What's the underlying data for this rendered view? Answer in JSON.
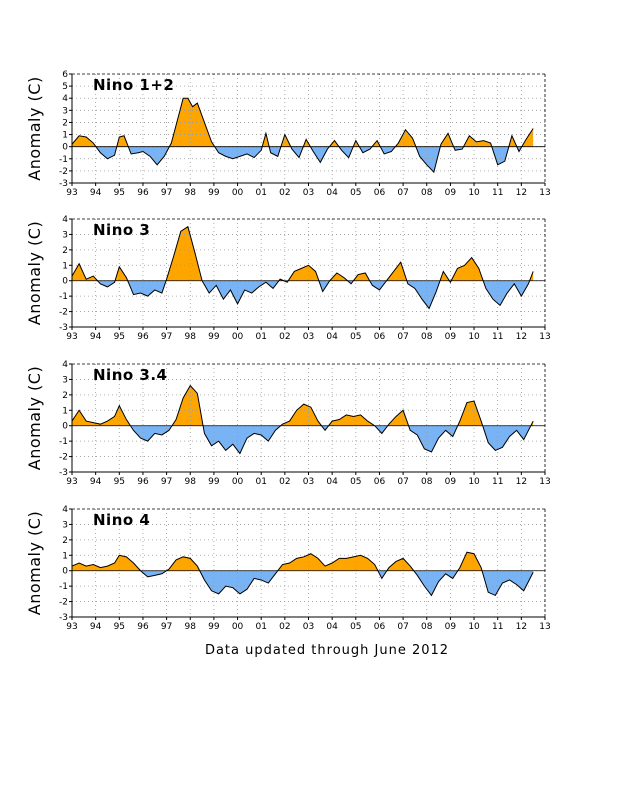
{
  "footer": "Data updated through June 2012",
  "colors": {
    "positive": "#ffa500",
    "negative": "#78b4f5",
    "line": "#000000",
    "grid": "#999999"
  },
  "chart_data": [
    {
      "type": "area",
      "title": "Nino 1+2",
      "ylabel": "Anomaly (C)",
      "xlim": [
        1993,
        2013
      ],
      "ylim": [
        -3,
        6
      ],
      "xticks": [
        1993,
        1994,
        1995,
        1996,
        1997,
        1998,
        1999,
        2000,
        2001,
        2002,
        2003,
        2004,
        2005,
        2006,
        2007,
        2008,
        2009,
        2010,
        2011,
        2012,
        2013
      ],
      "xtick_labels": [
        "93",
        "94",
        "95",
        "96",
        "97",
        "98",
        "99",
        "00",
        "01",
        "02",
        "03",
        "04",
        "05",
        "06",
        "07",
        "08",
        "09",
        "10",
        "11",
        "12",
        "13"
      ],
      "yticks": [
        -3,
        -2,
        -1,
        0,
        1,
        2,
        3,
        4,
        5,
        6
      ],
      "series": [
        {
          "x": [
            1993.0,
            1993.3,
            1993.6,
            1993.9,
            1994.2,
            1994.5,
            1994.8,
            1995.0,
            1995.2,
            1995.5,
            1995.8,
            1996.0,
            1996.3,
            1996.6,
            1996.9,
            1997.2,
            1997.5,
            1997.7,
            1997.9,
            1998.1,
            1998.3,
            1998.6,
            1998.9,
            1999.2,
            1999.5,
            1999.8,
            2000.1,
            2000.4,
            2000.7,
            2001.0,
            2001.2,
            2001.4,
            2001.7,
            2002.0,
            2002.3,
            2002.6,
            2002.9,
            2003.2,
            2003.5,
            2003.8,
            2004.1,
            2004.4,
            2004.7,
            2005.0,
            2005.3,
            2005.6,
            2005.9,
            2006.2,
            2006.5,
            2006.8,
            2007.1,
            2007.4,
            2007.7,
            2008.0,
            2008.3,
            2008.6,
            2008.9,
            2009.2,
            2009.5,
            2009.8,
            2010.1,
            2010.4,
            2010.7,
            2011.0,
            2011.3,
            2011.6,
            2011.9,
            2012.2,
            2012.5
          ],
          "y": [
            0.2,
            0.9,
            0.8,
            0.3,
            -0.5,
            -1.0,
            -0.7,
            0.8,
            0.9,
            -0.6,
            -0.5,
            -0.4,
            -0.8,
            -1.5,
            -0.8,
            0.3,
            2.5,
            4.0,
            4.0,
            3.3,
            3.6,
            2.0,
            0.4,
            -0.5,
            -0.8,
            -1.0,
            -0.8,
            -0.6,
            -0.9,
            -0.3,
            1.1,
            -0.5,
            -0.8,
            1.0,
            -0.2,
            -0.9,
            0.6,
            -0.4,
            -1.3,
            -0.2,
            0.5,
            -0.3,
            -0.9,
            0.5,
            -0.5,
            -0.2,
            0.5,
            -0.6,
            -0.4,
            0.3,
            1.4,
            0.7,
            -0.8,
            -1.5,
            -2.1,
            0.2,
            1.1,
            -0.3,
            -0.2,
            0.9,
            0.4,
            0.5,
            0.3,
            -1.5,
            -1.2,
            0.9,
            -0.4,
            0.6,
            1.5
          ]
        }
      ]
    },
    {
      "type": "area",
      "title": "Nino 3",
      "ylabel": "Anomaly (C)",
      "xlim": [
        1993,
        2013
      ],
      "ylim": [
        -3,
        4
      ],
      "xticks": [
        1993,
        1994,
        1995,
        1996,
        1997,
        1998,
        1999,
        2000,
        2001,
        2002,
        2003,
        2004,
        2005,
        2006,
        2007,
        2008,
        2009,
        2010,
        2011,
        2012,
        2013
      ],
      "xtick_labels": [
        "93",
        "94",
        "95",
        "96",
        "97",
        "98",
        "99",
        "00",
        "01",
        "02",
        "03",
        "04",
        "05",
        "06",
        "07",
        "08",
        "09",
        "10",
        "11",
        "12",
        "13"
      ],
      "yticks": [
        -3,
        -2,
        -1,
        0,
        1,
        2,
        3,
        4
      ],
      "series": [
        {
          "x": [
            1993.0,
            1993.3,
            1993.6,
            1993.9,
            1994.2,
            1994.5,
            1994.8,
            1995.0,
            1995.3,
            1995.6,
            1995.9,
            1996.2,
            1996.5,
            1996.8,
            1997.0,
            1997.3,
            1997.6,
            1997.9,
            1998.2,
            1998.5,
            1998.8,
            1999.1,
            1999.4,
            1999.7,
            2000.0,
            2000.3,
            2000.6,
            2000.9,
            2001.2,
            2001.5,
            2001.8,
            2002.1,
            2002.4,
            2002.7,
            2003.0,
            2003.3,
            2003.6,
            2003.9,
            2004.2,
            2004.5,
            2004.8,
            2005.1,
            2005.4,
            2005.7,
            2006.0,
            2006.3,
            2006.6,
            2006.9,
            2007.2,
            2007.5,
            2007.8,
            2008.1,
            2008.4,
            2008.7,
            2009.0,
            2009.3,
            2009.6,
            2009.9,
            2010.2,
            2010.5,
            2010.8,
            2011.1,
            2011.4,
            2011.7,
            2012.0,
            2012.3,
            2012.5
          ],
          "y": [
            0.3,
            1.1,
            0.1,
            0.3,
            -0.2,
            -0.4,
            -0.1,
            0.9,
            0.2,
            -0.9,
            -0.8,
            -1.0,
            -0.6,
            -0.8,
            0.1,
            1.6,
            3.2,
            3.5,
            1.8,
            0.0,
            -0.8,
            -0.3,
            -1.2,
            -0.6,
            -1.5,
            -0.6,
            -0.8,
            -0.4,
            -0.1,
            -0.5,
            0.1,
            -0.1,
            0.6,
            0.8,
            1.0,
            0.6,
            -0.7,
            0.0,
            0.5,
            0.2,
            -0.2,
            0.4,
            0.5,
            -0.3,
            -0.6,
            0.0,
            0.6,
            1.2,
            -0.2,
            -0.5,
            -1.2,
            -1.8,
            -0.7,
            0.6,
            -0.1,
            0.8,
            1.0,
            1.5,
            0.8,
            -0.5,
            -1.2,
            -1.6,
            -0.8,
            -0.2,
            -1.0,
            -0.2,
            0.6
          ]
        }
      ]
    },
    {
      "type": "area",
      "title": "Nino 3.4",
      "ylabel": "Anomaly (C)",
      "xlim": [
        1993,
        2013
      ],
      "ylim": [
        -3,
        4
      ],
      "xticks": [
        1993,
        1994,
        1995,
        1996,
        1997,
        1998,
        1999,
        2000,
        2001,
        2002,
        2003,
        2004,
        2005,
        2006,
        2007,
        2008,
        2009,
        2010,
        2011,
        2012,
        2013
      ],
      "xtick_labels": [
        "93",
        "94",
        "95",
        "96",
        "97",
        "98",
        "99",
        "00",
        "01",
        "02",
        "03",
        "04",
        "05",
        "06",
        "07",
        "08",
        "09",
        "10",
        "11",
        "12",
        "13"
      ],
      "yticks": [
        -3,
        -2,
        -1,
        0,
        1,
        2,
        3,
        4
      ],
      "series": [
        {
          "x": [
            1993.0,
            1993.3,
            1993.6,
            1993.9,
            1994.2,
            1994.5,
            1994.8,
            1995.0,
            1995.3,
            1995.6,
            1995.9,
            1996.2,
            1996.5,
            1996.8,
            1997.1,
            1997.4,
            1997.7,
            1998.0,
            1998.3,
            1998.6,
            1998.9,
            1999.2,
            1999.5,
            1999.8,
            2000.1,
            2000.4,
            2000.7,
            2001.0,
            2001.3,
            2001.6,
            2001.9,
            2002.2,
            2002.5,
            2002.8,
            2003.1,
            2003.4,
            2003.7,
            2004.0,
            2004.3,
            2004.6,
            2004.9,
            2005.2,
            2005.5,
            2005.8,
            2006.1,
            2006.4,
            2006.7,
            2007.0,
            2007.3,
            2007.6,
            2007.9,
            2008.2,
            2008.5,
            2008.8,
            2009.1,
            2009.4,
            2009.7,
            2010.0,
            2010.3,
            2010.6,
            2010.9,
            2011.2,
            2011.5,
            2011.8,
            2012.1,
            2012.5
          ],
          "y": [
            0.3,
            1.0,
            0.3,
            0.2,
            0.1,
            0.3,
            0.6,
            1.3,
            0.4,
            -0.3,
            -0.8,
            -1.0,
            -0.5,
            -0.6,
            -0.3,
            0.4,
            1.8,
            2.6,
            2.1,
            -0.5,
            -1.3,
            -1.0,
            -1.6,
            -1.2,
            -1.8,
            -0.8,
            -0.5,
            -0.6,
            -1.0,
            -0.3,
            0.1,
            0.3,
            1.0,
            1.4,
            1.2,
            0.3,
            -0.3,
            0.3,
            0.4,
            0.7,
            0.6,
            0.7,
            0.3,
            0.0,
            -0.5,
            0.1,
            0.6,
            1.0,
            -0.3,
            -0.6,
            -1.5,
            -1.7,
            -0.8,
            -0.3,
            -0.7,
            0.3,
            1.5,
            1.6,
            0.3,
            -1.1,
            -1.6,
            -1.4,
            -0.7,
            -0.3,
            -0.9,
            0.3
          ]
        }
      ]
    },
    {
      "type": "area",
      "title": "Nino 4",
      "ylabel": "Anomaly (C)",
      "xlim": [
        1993,
        2013
      ],
      "ylim": [
        -3,
        4
      ],
      "xticks": [
        1993,
        1994,
        1995,
        1996,
        1997,
        1998,
        1999,
        2000,
        2001,
        2002,
        2003,
        2004,
        2005,
        2006,
        2007,
        2008,
        2009,
        2010,
        2011,
        2012,
        2013
      ],
      "xtick_labels": [
        "93",
        "94",
        "95",
        "96",
        "97",
        "98",
        "99",
        "00",
        "01",
        "02",
        "03",
        "04",
        "05",
        "06",
        "07",
        "08",
        "09",
        "10",
        "11",
        "12",
        "13"
      ],
      "yticks": [
        -3,
        -2,
        -1,
        0,
        1,
        2,
        3,
        4
      ],
      "series": [
        {
          "x": [
            1993.0,
            1993.3,
            1993.6,
            1993.9,
            1994.2,
            1994.5,
            1994.8,
            1995.0,
            1995.3,
            1995.6,
            1995.9,
            1996.2,
            1996.5,
            1996.8,
            1997.1,
            1997.4,
            1997.7,
            1998.0,
            1998.3,
            1998.6,
            1998.9,
            1999.2,
            1999.5,
            1999.8,
            2000.1,
            2000.4,
            2000.7,
            2001.0,
            2001.3,
            2001.6,
            2001.9,
            2002.2,
            2002.5,
            2002.8,
            2003.1,
            2003.4,
            2003.7,
            2004.0,
            2004.3,
            2004.6,
            2004.9,
            2005.2,
            2005.5,
            2005.8,
            2006.1,
            2006.4,
            2006.7,
            2007.0,
            2007.3,
            2007.6,
            2007.9,
            2008.2,
            2008.5,
            2008.8,
            2009.1,
            2009.4,
            2009.7,
            2010.0,
            2010.3,
            2010.6,
            2010.9,
            2011.2,
            2011.5,
            2011.8,
            2012.1,
            2012.5
          ],
          "y": [
            0.3,
            0.5,
            0.3,
            0.4,
            0.2,
            0.3,
            0.5,
            1.0,
            0.9,
            0.5,
            0.0,
            -0.4,
            -0.3,
            -0.2,
            0.1,
            0.7,
            0.9,
            0.8,
            0.3,
            -0.6,
            -1.3,
            -1.5,
            -1.0,
            -1.1,
            -1.5,
            -1.2,
            -0.5,
            -0.6,
            -0.8,
            -0.2,
            0.4,
            0.5,
            0.8,
            0.9,
            1.1,
            0.8,
            0.3,
            0.5,
            0.8,
            0.8,
            0.9,
            1.0,
            0.8,
            0.4,
            -0.5,
            0.2,
            0.6,
            0.8,
            0.3,
            -0.3,
            -1.0,
            -1.6,
            -0.7,
            -0.2,
            -0.5,
            0.2,
            1.2,
            1.1,
            0.2,
            -1.4,
            -1.6,
            -0.8,
            -0.6,
            -0.9,
            -1.3,
            -0.1
          ]
        }
      ]
    }
  ]
}
